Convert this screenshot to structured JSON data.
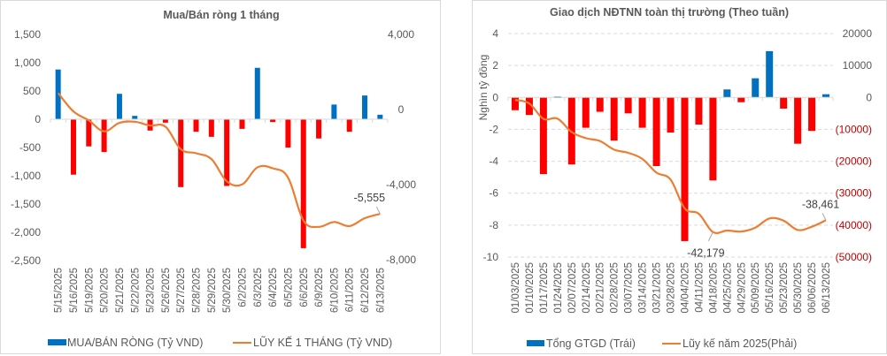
{
  "chart_data": [
    {
      "type": "bar",
      "combo": "bar+line",
      "title": "Mua/Bán ròng 1 tháng",
      "xlabel": "",
      "ylabel": "",
      "ylim": [
        -2500,
        1500
      ],
      "y_ticks": [
        "1,500",
        "1,000",
        "500",
        "0",
        "-500",
        "-1,000",
        "-1,500",
        "-2,000",
        "-2,500"
      ],
      "y_tick_values": [
        1500,
        1000,
        500,
        0,
        -500,
        -1000,
        -1500,
        -2000,
        -2500
      ],
      "y2lim": [
        -8000,
        4000
      ],
      "y2_ticks": [
        "4,000",
        "0",
        "-4,000",
        "-8,000"
      ],
      "y2_tick_values": [
        4000,
        0,
        -4000,
        -8000
      ],
      "grid": false,
      "legend_position": "bottom",
      "categories": [
        "5/15/2025",
        "5/16/2025",
        "5/19/2025",
        "5/20/2025",
        "5/21/2025",
        "5/22/2025",
        "5/23/2025",
        "5/26/2025",
        "5/27/2025",
        "5/28/2025",
        "5/29/2025",
        "5/30/2025",
        "6/2/2025",
        "6/3/2025",
        "6/4/2025",
        "6/5/2025",
        "6/6/2025",
        "6/9/2025",
        "6/10/2025",
        "6/11/2025",
        "6/12/2025",
        "6/13/2025"
      ],
      "series": [
        {
          "name": "MUA/BÁN RÒNG (Tỷ VND)",
          "type": "bar",
          "axis": "left",
          "color": "#0070c0",
          "negative_color": "#ff0000",
          "values": [
            880,
            -980,
            -480,
            -580,
            450,
            60,
            -200,
            -60,
            -1200,
            -220,
            -310,
            -1180,
            -170,
            910,
            -50,
            -500,
            -2280,
            -340,
            260,
            -220,
            420,
            80
          ]
        },
        {
          "name": "LŨY KẾ 1 THÁNG (Tỷ VND)",
          "type": "line",
          "axis": "right",
          "color": "#ed7d31",
          "values": [
            880,
            -100,
            -580,
            -1160,
            -710,
            -650,
            -850,
            -910,
            -2110,
            -2330,
            -2640,
            -3820,
            -3990,
            -3080,
            -3130,
            -3630,
            -5910,
            -6250,
            -5990,
            -6210,
            -5790,
            -5555
          ]
        }
      ],
      "annotations": [
        {
          "label": "-5,555",
          "category": "6/13/2025"
        }
      ]
    },
    {
      "type": "bar",
      "combo": "bar+line",
      "title": "Giao dịch NĐTNN toàn thị trường (Theo tuần)",
      "xlabel": "",
      "ylabel": "Nghìn tỷ đồng",
      "ylim": [
        -10,
        4
      ],
      "y_ticks": [
        "4",
        "2",
        "0",
        "-2",
        "-4",
        "-6",
        "-8",
        "-10"
      ],
      "y_tick_values": [
        4,
        2,
        0,
        -2,
        -4,
        -6,
        -8,
        -10
      ],
      "y2lim": [
        -50000,
        20000
      ],
      "y2_ticks": [
        "20000",
        "10000",
        "0",
        "(10000)",
        "(20000)",
        "(30000)",
        "(40000)",
        "(50000)"
      ],
      "y2_tick_values": [
        20000,
        10000,
        0,
        -10000,
        -20000,
        -30000,
        -40000,
        -50000
      ],
      "grid": true,
      "legend_position": "bottom",
      "categories": [
        "01/03/2025",
        "01/10/2025",
        "01/17/2025",
        "01/24/2025",
        "02/07/2025",
        "02/14/2025",
        "02/21/2025",
        "02/28/2025",
        "03/07/2025",
        "03/14/2025",
        "03/21/2025",
        "03/28/2025",
        "04/04/2025",
        "04/11/2025",
        "04/18/2025",
        "04/25/2025",
        "04/29/2025",
        "05/09/2025",
        "05/16/2025",
        "05/23/2025",
        "05/30/2025",
        "06/06/2025",
        "06/13/2025"
      ],
      "series": [
        {
          "name": "Tổng GTGD (Trái)",
          "type": "bar",
          "axis": "left",
          "color": "#0070c0",
          "negative_color": "#ff0000",
          "values": [
            -0.8,
            -1.1,
            -4.8,
            0.05,
            -4.2,
            -1.9,
            -0.9,
            -2.7,
            -1.0,
            -1.9,
            -4.3,
            -2.2,
            -9.0,
            -1.7,
            -5.2,
            0.5,
            -0.3,
            1.2,
            2.9,
            -0.7,
            -2.9,
            -2.1,
            0.2
          ]
        },
        {
          "name": "Lũy kế năm 2025(Phải)",
          "type": "line",
          "axis": "right",
          "color": "#ed7d31",
          "values": [
            -800,
            -1900,
            -6700,
            -6650,
            -10850,
            -12750,
            -13650,
            -16350,
            -17350,
            -19250,
            -23550,
            -25750,
            -34750,
            -36450,
            -42179,
            -41700,
            -42000,
            -40800,
            -37900,
            -38600,
            -41500,
            -40500,
            -38461
          ]
        }
      ],
      "annotations": [
        {
          "label": "-42,179",
          "category": "04/18/2025"
        },
        {
          "label": "-38,461",
          "category": "06/13/2025"
        }
      ]
    }
  ]
}
